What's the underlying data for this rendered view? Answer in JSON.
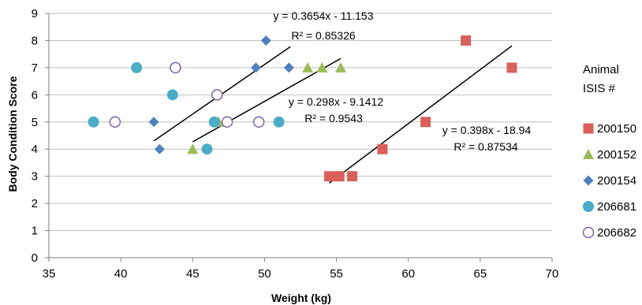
{
  "chart_data": {
    "type": "scatter",
    "title": "",
    "xlabel": "Weight (kg)",
    "ylabel": "Body Condition Score",
    "xlim": [
      35,
      70
    ],
    "ylim": [
      0,
      9
    ],
    "xticks": [
      35,
      40,
      45,
      50,
      55,
      60,
      65,
      70
    ],
    "yticks": [
      0,
      1,
      2,
      3,
      4,
      5,
      6,
      7,
      8,
      9
    ],
    "grid": "horizontal",
    "legend": {
      "title_line1": "Animal",
      "title_line2": "ISIS #",
      "placement": "right"
    },
    "series": [
      {
        "name": "200150",
        "marker": "square",
        "color": "#d9605a",
        "points": [
          [
            54.5,
            3
          ],
          [
            55.2,
            3
          ],
          [
            56.1,
            3
          ],
          [
            58.2,
            4
          ],
          [
            61.2,
            5
          ],
          [
            64.0,
            8
          ],
          [
            67.2,
            7
          ]
        ]
      },
      {
        "name": "200152",
        "marker": "triangle",
        "color": "#9bbb59",
        "points": [
          [
            45.0,
            4
          ],
          [
            46.8,
            5
          ],
          [
            53.0,
            7
          ],
          [
            54.0,
            7
          ],
          [
            55.3,
            7
          ]
        ]
      },
      {
        "name": "200154",
        "marker": "diamond",
        "color": "#4f81bd",
        "points": [
          [
            42.3,
            5
          ],
          [
            42.7,
            4
          ],
          [
            49.4,
            7
          ],
          [
            50.1,
            8
          ],
          [
            51.7,
            7
          ]
        ]
      },
      {
        "name": "206681",
        "marker": "circle",
        "color": "#4bacc6",
        "points": [
          [
            38.1,
            5
          ],
          [
            41.1,
            7
          ],
          [
            43.6,
            6
          ],
          [
            46.0,
            4
          ],
          [
            46.5,
            5
          ],
          [
            51.0,
            5
          ]
        ]
      },
      {
        "name": "206682",
        "marker": "open-circle",
        "color": "#8064a2",
        "points": [
          [
            39.6,
            5
          ],
          [
            43.8,
            7
          ],
          [
            46.7,
            6
          ],
          [
            47.4,
            5
          ],
          [
            49.6,
            5
          ]
        ]
      }
    ],
    "trendlines": [
      {
        "equation": "y = 0.3654x - 11.153",
        "r2": "R² = 0.85326",
        "x_range": [
          42.3,
          51.8
        ]
      },
      {
        "equation": "y = 0.298x - 9.1412",
        "r2": "R² = 0.9543",
        "x_range": [
          45.0,
          55.3
        ]
      },
      {
        "equation": "y = 0.398x - 18.94",
        "r2": "R² = 0.87534",
        "x_range": [
          54.5,
          67.2
        ]
      }
    ]
  }
}
